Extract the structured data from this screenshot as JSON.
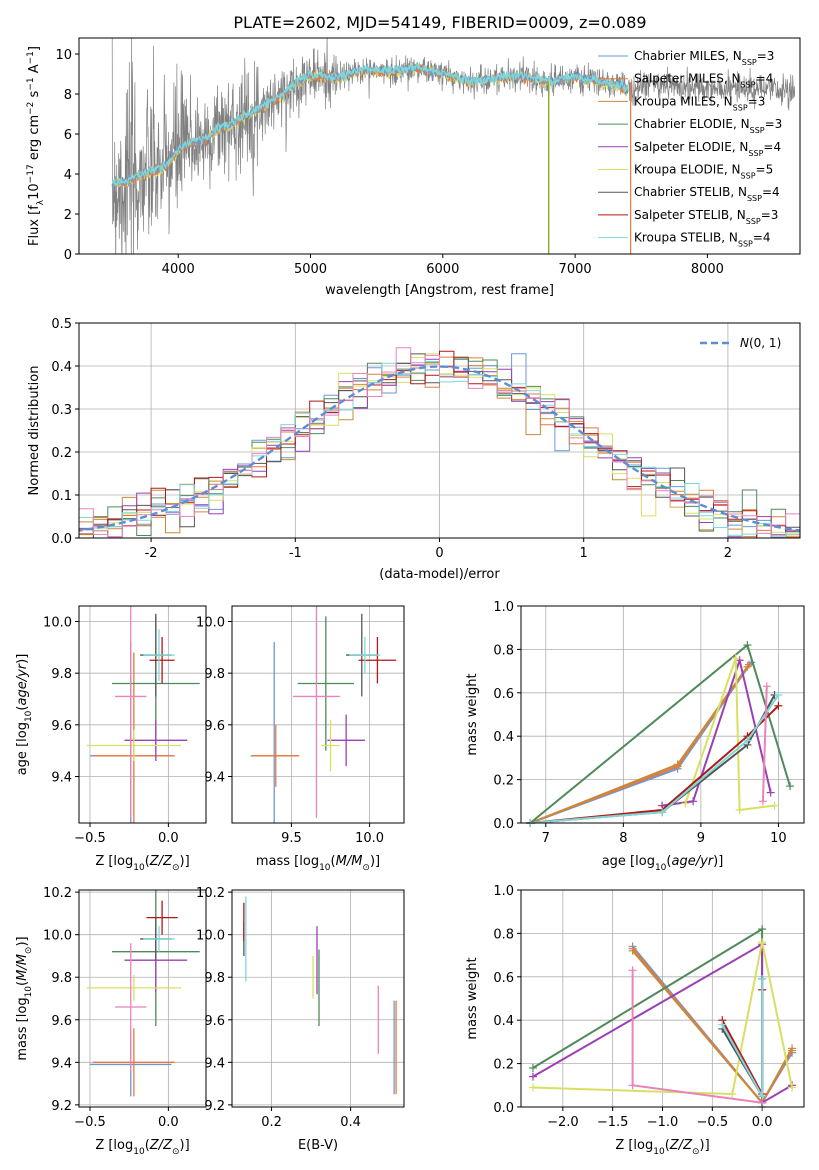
{
  "title": "PLATE=2602, MJD=54149, FIBERID=0009, z=0.089",
  "colors": {
    "Chabrier MILES": "#6a98d6",
    "Salpeter MILES": "#e8793c",
    "Kroupa MILES": "#c9893a",
    "Chabrier ELODIE": "#4f8a5a",
    "Salpeter ELODIE": "#9b3fb5",
    "Kroupa ELODIE": "#d8e060",
    "Chabrier STELIB": "#555555",
    "Salpeter STELIB": "#b01818",
    "Kroupa STELIB": "#7fd8d8",
    "pink": "#e884b8",
    "normal": "#5b8ed6",
    "data": "#808080"
  },
  "chart_data": [
    {
      "type": "line",
      "xlabel": "wavelength [Angstrom, rest frame]",
      "ylabel": "Flux [f_λ10^−17 erg cm^−2 s^−1 A^−1]",
      "xlim": [
        3250,
        8700
      ],
      "ylim": [
        0,
        10.8
      ],
      "xticks": [
        4000,
        5000,
        6000,
        7000,
        8000
      ],
      "yticks": [
        0,
        2,
        4,
        6,
        8,
        10
      ],
      "grid": false,
      "legend_position": "right",
      "legend": [
        {
          "name": "Chabrier MILES",
          "label_base": "Chabrier MILES, N",
          "nssp": 3
        },
        {
          "name": "Salpeter MILES",
          "label_base": "Salpeter MILES, N",
          "nssp": 4
        },
        {
          "name": "Kroupa MILES",
          "label_base": "Kroupa MILES, N",
          "nssp": 3
        },
        {
          "name": "Chabrier ELODIE",
          "label_base": "Chabrier ELODIE, N",
          "nssp": 3
        },
        {
          "name": "Salpeter ELODIE",
          "label_base": "Salpeter ELODIE, N",
          "nssp": 4
        },
        {
          "name": "Kroupa ELODIE",
          "label_base": "Kroupa ELODIE, N",
          "nssp": 5
        },
        {
          "name": "Chabrier STELIB",
          "label_base": "Chabrier STELIB, N",
          "nssp": 4
        },
        {
          "name": "Salpeter STELIB",
          "label_base": "Salpeter STELIB, N",
          "nssp": 3
        },
        {
          "name": "Kroupa STELIB",
          "label_base": "Kroupa STELIB, N",
          "nssp": 4
        }
      ],
      "legend_subscript": "SSP",
      "continuum": {
        "x": [
          3500,
          3600,
          3700,
          3800,
          3900,
          4000,
          4100,
          4200,
          4300,
          4400,
          4600,
          4800,
          4900,
          5000,
          5200,
          5400,
          5600,
          5800,
          6000,
          6200,
          6400,
          6600,
          6800,
          7000,
          7200,
          7400,
          7600,
          7800,
          8000,
          8200,
          8400,
          8600
        ],
        "y": [
          3.5,
          3.6,
          3.9,
          4.1,
          4.3,
          5.2,
          5.6,
          5.7,
          6.3,
          6.5,
          7.2,
          8.0,
          8.6,
          8.9,
          8.8,
          9.2,
          9.1,
          9.3,
          9.0,
          8.6,
          8.8,
          8.9,
          8.6,
          8.8,
          8.6,
          8.3,
          8.5,
          8.4,
          8.2,
          8.3,
          8.2,
          8.2
        ]
      },
      "model_range": [
        3500,
        7400
      ],
      "data_range": [
        3500,
        8660
      ]
    },
    {
      "type": "bar",
      "xlabel": "(data-model)/error",
      "ylabel": "Normed distribution",
      "xlim": [
        -2.5,
        2.5
      ],
      "ylim": [
        0,
        0.5
      ],
      "xticks": [
        -2,
        -1,
        0,
        1,
        2
      ],
      "yticks": [
        0.0,
        0.1,
        0.2,
        0.3,
        0.4,
        0.5
      ],
      "grid": true,
      "legend_position": "top-right",
      "legend": [
        "N(0,1)"
      ],
      "bin_width": 0.1,
      "mean": 0,
      "sigma": 1
    },
    {
      "type": "scatter",
      "xlabel": "Z [log10(Z/Z⊙)]",
      "ylabel": "age [log10(age/yr)]",
      "xlim": [
        -0.57,
        0.24
      ],
      "ylim": [
        9.22,
        10.06
      ],
      "xticks": [
        -0.5,
        0.0
      ],
      "yticks": [
        9.4,
        9.6,
        9.8,
        10.0
      ],
      "grid": true,
      "points": [
        {
          "color": "Chabrier MILES",
          "x": -0.24,
          "xerr": 0.26,
          "y": 9.48,
          "yerr": 0.44
        },
        {
          "color": "Salpeter MILES",
          "x": -0.22,
          "xerr": 0.26,
          "y": 9.48,
          "yerr": 0.4
        },
        {
          "color": "Chabrier ELODIE",
          "x": -0.08,
          "xerr": 0.28,
          "y": 9.76,
          "yerr": 0.26
        },
        {
          "color": "Salpeter ELODIE",
          "x": -0.08,
          "xerr": 0.2,
          "y": 9.54,
          "yerr": 0.08
        },
        {
          "color": "Kroupa ELODIE",
          "x": -0.22,
          "xerr": 0.3,
          "y": 9.52,
          "yerr": 0.06
        },
        {
          "color": "Chabrier STELIB",
          "x": -0.08,
          "xerr": 0.1,
          "y": 9.87,
          "yerr": 0.16
        },
        {
          "color": "Salpeter STELIB",
          "x": -0.04,
          "xerr": 0.08,
          "y": 9.85,
          "yerr": 0.09
        },
        {
          "color": "Kroupa STELIB",
          "x": -0.06,
          "xerr": 0.1,
          "y": 9.87,
          "yerr": 0.1
        },
        {
          "color": "pink",
          "x": -0.24,
          "xerr": 0.1,
          "y": 9.71,
          "yerr": 0.47
        }
      ]
    },
    {
      "type": "scatter",
      "xlabel": "mass [log10(M/M⊙)]",
      "ylabel": "",
      "xlim": [
        9.12,
        10.22
      ],
      "ylim": [
        9.22,
        10.06
      ],
      "xticks": [
        9.5,
        10.0
      ],
      "yticks": [
        9.4,
        9.6,
        9.8,
        10.0
      ],
      "grid": true,
      "points": [
        {
          "color": "Chabrier MILES",
          "x": 9.39,
          "xerr": 0.15,
          "y": 9.48,
          "yerr": 0.44
        },
        {
          "color": "Salpeter MILES",
          "x": 9.4,
          "xerr": 0.15,
          "y": 9.48,
          "yerr": 0.12
        },
        {
          "color": "Chabrier ELODIE",
          "x": 9.72,
          "xerr": 0.18,
          "y": 9.76,
          "yerr": 0.26
        },
        {
          "color": "Salpeter ELODIE",
          "x": 9.85,
          "xerr": 0.12,
          "y": 9.54,
          "yerr": 0.1
        },
        {
          "color": "Kroupa ELODIE",
          "x": 9.75,
          "xerr": 0.06,
          "y": 9.52,
          "yerr": 0.1
        },
        {
          "color": "Chabrier STELIB",
          "x": 9.95,
          "xerr": 0.1,
          "y": 9.87,
          "yerr": 0.16
        },
        {
          "color": "Salpeter STELIB",
          "x": 10.05,
          "xerr": 0.12,
          "y": 9.85,
          "yerr": 0.09
        },
        {
          "color": "Kroupa STELIB",
          "x": 9.97,
          "xerr": 0.1,
          "y": 9.87,
          "yerr": 0.07
        },
        {
          "color": "pink",
          "x": 9.66,
          "xerr": 0.15,
          "y": 9.71,
          "yerr": 0.47
        }
      ]
    },
    {
      "type": "line",
      "xlabel": "age [log10(age/yr)]",
      "ylabel": "mass weight",
      "xlim": [
        6.68,
        10.33
      ],
      "ylim": [
        0,
        1
      ],
      "xticks": [
        7,
        8,
        9,
        10
      ],
      "yticks": [
        0.0,
        0.2,
        0.4,
        0.6,
        0.8,
        1.0
      ],
      "grid": true,
      "series": [
        {
          "color": "Chabrier MILES",
          "x": [
            6.8,
            8.7,
            9.65
          ],
          "y": [
            0.0,
            0.25,
            0.74
          ]
        },
        {
          "color": "Salpeter MILES",
          "x": [
            6.8,
            8.7,
            9.62
          ],
          "y": [
            0.0,
            0.26,
            0.73
          ]
        },
        {
          "color": "Kroupa MILES",
          "x": [
            6.8,
            8.7,
            9.6
          ],
          "y": [
            0.0,
            0.27,
            0.72
          ]
        },
        {
          "color": "Chabrier ELODIE",
          "x": [
            6.8,
            9.6,
            10.15
          ],
          "y": [
            0.0,
            0.82,
            0.17
          ]
        },
        {
          "color": "Salpeter ELODIE",
          "x": [
            8.5,
            8.9,
            9.5,
            9.9
          ],
          "y": [
            0.08,
            0.1,
            0.75,
            0.14
          ]
        },
        {
          "color": "Kroupa ELODIE",
          "x": [
            8.8,
            9.45,
            9.5,
            9.95
          ],
          "y": [
            0.09,
            0.76,
            0.06,
            0.08
          ]
        },
        {
          "color": "Chabrier STELIB",
          "x": [
            6.8,
            8.5,
            9.6,
            9.95
          ],
          "y": [
            0.0,
            0.05,
            0.36,
            0.59
          ]
        },
        {
          "color": "Salpeter STELIB",
          "x": [
            6.8,
            8.5,
            9.6,
            10.0
          ],
          "y": [
            0.0,
            0.06,
            0.4,
            0.54
          ]
        },
        {
          "color": "Kroupa STELIB",
          "x": [
            6.8,
            8.5,
            9.6,
            10.0
          ],
          "y": [
            0.0,
            0.05,
            0.38,
            0.59
          ]
        },
        {
          "color": "pink",
          "x": [
            9.8,
            9.85
          ],
          "y": [
            0.1,
            0.63
          ]
        }
      ]
    },
    {
      "type": "scatter",
      "xlabel": "Z [log10(Z/Z⊙)]",
      "ylabel": "mass [log10(M/M⊙)]",
      "xlim": [
        -0.57,
        0.24
      ],
      "ylim": [
        9.19,
        10.21
      ],
      "xticks": [
        -0.5,
        0.0
      ],
      "yticks": [
        9.2,
        9.4,
        9.6,
        9.8,
        10.0,
        10.2
      ],
      "grid": true,
      "points": [
        {
          "color": "Chabrier MILES",
          "x": -0.24,
          "xerr": 0.26,
          "y": 9.39,
          "yerr": 0.15
        },
        {
          "color": "Salpeter MILES",
          "x": -0.22,
          "xerr": 0.26,
          "y": 9.4,
          "yerr": 0.16
        },
        {
          "color": "Chabrier ELODIE",
          "x": -0.08,
          "xerr": 0.28,
          "y": 9.92,
          "yerr": 0.35
        },
        {
          "color": "Salpeter ELODIE",
          "x": -0.08,
          "xerr": 0.2,
          "y": 9.88,
          "yerr": 0.15
        },
        {
          "color": "Kroupa ELODIE",
          "x": -0.22,
          "xerr": 0.3,
          "y": 9.75,
          "yerr": 0.06
        },
        {
          "color": "Chabrier STELIB",
          "x": -0.08,
          "xerr": 0.1,
          "y": 9.98,
          "yerr": 0.1
        },
        {
          "color": "Salpeter STELIB",
          "x": -0.04,
          "xerr": 0.1,
          "y": 10.08,
          "yerr": 0.08
        },
        {
          "color": "Kroupa STELIB",
          "x": -0.06,
          "xerr": 0.1,
          "y": 9.98,
          "yerr": 0.06
        },
        {
          "color": "pink",
          "x": -0.24,
          "xerr": 0.1,
          "y": 9.66,
          "yerr": 0.3
        }
      ]
    },
    {
      "type": "scatter",
      "xlabel": "E(B-V)",
      "ylabel": "",
      "xlim": [
        0.1,
        0.535
      ],
      "ylim": [
        9.19,
        10.21
      ],
      "xticks": [
        0.2,
        0.4
      ],
      "yticks": [
        9.2,
        9.4,
        9.6,
        9.8,
        10.0,
        10.2
      ],
      "grid": true,
      "points": [
        {
          "color": "Chabrier MILES",
          "x": 0.51,
          "xerr": 0,
          "y": 9.47,
          "yerr": 0.22
        },
        {
          "color": "Salpeter MILES",
          "x": 0.515,
          "xerr": 0,
          "y": 9.47,
          "yerr": 0.22
        },
        {
          "color": "Chabrier ELODIE",
          "x": 0.32,
          "xerr": 0,
          "y": 9.75,
          "yerr": 0.18
        },
        {
          "color": "Salpeter ELODIE",
          "x": 0.315,
          "xerr": 0,
          "y": 9.88,
          "yerr": 0.16
        },
        {
          "color": "Kroupa ELODIE",
          "x": 0.305,
          "xerr": 0,
          "y": 9.8,
          "yerr": 0.1
        },
        {
          "color": "Chabrier STELIB",
          "x": 0.13,
          "xerr": 0,
          "y": 9.98,
          "yerr": 0.08
        },
        {
          "color": "Salpeter STELIB",
          "x": 0.13,
          "xerr": 0,
          "y": 10.06,
          "yerr": 0.09
        },
        {
          "color": "Kroupa STELIB",
          "x": 0.135,
          "xerr": 0,
          "y": 9.98,
          "yerr": 0.2
        },
        {
          "color": "pink",
          "x": 0.47,
          "xerr": 0,
          "y": 9.6,
          "yerr": 0.16
        }
      ]
    },
    {
      "type": "line",
      "xlabel": "Z [log10(Z/Z⊙)]",
      "ylabel": "mass weight",
      "xlim": [
        -2.42,
        0.42
      ],
      "ylim": [
        0,
        1
      ],
      "xticks": [
        -2.0,
        -1.5,
        -1.0,
        -0.5,
        0.0
      ],
      "yticks": [
        0.0,
        0.2,
        0.4,
        0.6,
        0.8,
        1.0
      ],
      "grid": true,
      "series": [
        {
          "color": "Chabrier MILES",
          "x": [
            -1.3,
            0.0,
            0.3
          ],
          "y": [
            0.74,
            0.02,
            0.25
          ]
        },
        {
          "color": "Salpeter MILES",
          "x": [
            -1.3,
            0.0,
            0.3
          ],
          "y": [
            0.73,
            0.02,
            0.26
          ]
        },
        {
          "color": "Kroupa MILES",
          "x": [
            -1.3,
            0.0,
            0.3
          ],
          "y": [
            0.72,
            0.02,
            0.27
          ]
        },
        {
          "color": "Chabrier ELODIE",
          "x": [
            -2.3,
            0.0,
            0.0
          ],
          "y": [
            0.18,
            0.82,
            0.0
          ]
        },
        {
          "color": "Salpeter ELODIE",
          "x": [
            -2.3,
            0.0,
            0.0,
            0.3
          ],
          "y": [
            0.14,
            0.75,
            0.02,
            0.1
          ]
        },
        {
          "color": "Kroupa ELODIE",
          "x": [
            -2.3,
            -0.3,
            0.0,
            0.3
          ],
          "y": [
            0.09,
            0.06,
            0.76,
            0.09
          ]
        },
        {
          "color": "Chabrier STELIB",
          "x": [
            -0.4,
            0.0,
            0.0
          ],
          "y": [
            0.36,
            0.05,
            0.59
          ]
        },
        {
          "color": "Salpeter STELIB",
          "x": [
            -0.4,
            0.0,
            0.0
          ],
          "y": [
            0.4,
            0.06,
            0.54
          ]
        },
        {
          "color": "Kroupa STELIB",
          "x": [
            -0.4,
            0.0,
            0.0
          ],
          "y": [
            0.38,
            0.05,
            0.59
          ]
        },
        {
          "color": "pink",
          "x": [
            -1.3,
            -1.3,
            0.0
          ],
          "y": [
            0.63,
            0.1,
            0.02
          ]
        }
      ]
    }
  ]
}
